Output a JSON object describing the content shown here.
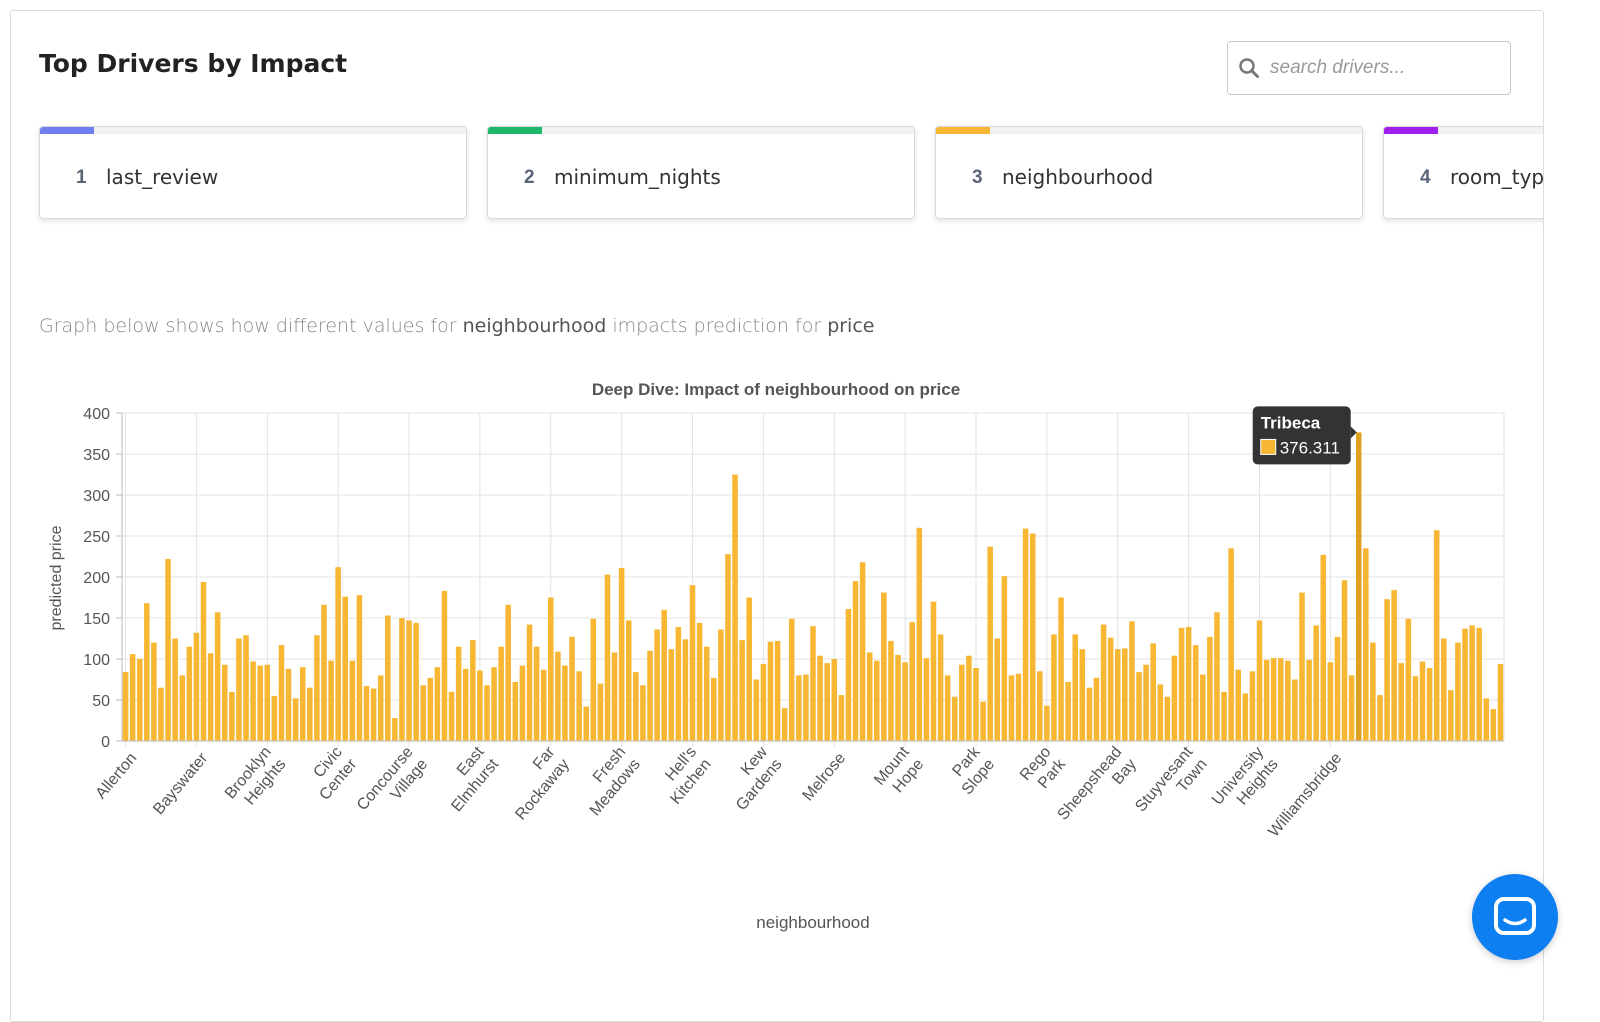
{
  "header": {
    "title": "Top Drivers by Impact",
    "search_placeholder": "search drivers..."
  },
  "drivers": [
    {
      "rank": "1",
      "name": "last_review",
      "color": "#6f7ff0"
    },
    {
      "rank": "2",
      "name": "minimum_nights",
      "color": "#1db66b"
    },
    {
      "rank": "3",
      "name": "neighbourhood",
      "color": "#f7b733"
    },
    {
      "rank": "4",
      "name": "room_type",
      "color": "#a020f0"
    }
  ],
  "description": {
    "prefix": "Graph below shows how different values for",
    "feature": "neighbourhood",
    "middle": "impacts prediction for",
    "target": "price"
  },
  "chart_data": {
    "type": "bar",
    "title": "Deep Dive: Impact of neighbourhood on price",
    "xlabel": "neighbourhood",
    "ylabel": "predicted price",
    "ylim": [
      0,
      400
    ],
    "yticks": [
      0,
      50,
      100,
      150,
      200,
      250,
      300,
      350,
      400
    ],
    "bar_color": "#f7b733",
    "grid": true,
    "tick_labels": [
      {
        "index": 0,
        "lines": [
          "Allerton"
        ]
      },
      {
        "index": 10,
        "lines": [
          "Bayswater"
        ]
      },
      {
        "index": 20,
        "lines": [
          "Brooklyn",
          "Heights"
        ]
      },
      {
        "index": 30,
        "lines": [
          "Civic",
          "Center"
        ]
      },
      {
        "index": 40,
        "lines": [
          "Concourse",
          "Village"
        ]
      },
      {
        "index": 50,
        "lines": [
          "East",
          "Elmhurst"
        ]
      },
      {
        "index": 60,
        "lines": [
          "Far",
          "Rockaway"
        ]
      },
      {
        "index": 70,
        "lines": [
          "Fresh",
          "Meadows"
        ]
      },
      {
        "index": 80,
        "lines": [
          "Hell's",
          "Kitchen"
        ]
      },
      {
        "index": 90,
        "lines": [
          "Kew",
          "Gardens"
        ]
      },
      {
        "index": 100,
        "lines": [
          "Melrose"
        ]
      },
      {
        "index": 110,
        "lines": [
          "Mount",
          "Hope"
        ]
      },
      {
        "index": 120,
        "lines": [
          "Park",
          "Slope"
        ]
      },
      {
        "index": 130,
        "lines": [
          "Rego",
          "Park"
        ]
      },
      {
        "index": 140,
        "lines": [
          "Sheepshead",
          "Bay"
        ]
      },
      {
        "index": 150,
        "lines": [
          "Stuyvesant",
          "Town"
        ]
      },
      {
        "index": 160,
        "lines": [
          "University",
          "Heights"
        ]
      },
      {
        "index": 170,
        "lines": [
          "Williamsbridge"
        ]
      }
    ],
    "values": [
      84,
      106,
      100,
      168,
      120,
      65,
      222,
      125,
      80,
      115,
      132,
      194,
      107,
      157,
      93,
      60,
      125,
      129,
      97,
      92,
      93,
      55,
      117,
      88,
      52,
      90,
      65,
      129,
      166,
      98,
      212,
      176,
      98,
      178,
      67,
      64,
      80,
      153,
      28,
      150,
      147,
      144,
      68,
      77,
      90,
      183,
      60,
      115,
      88,
      123,
      86,
      68,
      90,
      115,
      166,
      72,
      92,
      142,
      115,
      87,
      175,
      109,
      92,
      127,
      85,
      42,
      149,
      70,
      203,
      108,
      211,
      147,
      84,
      68,
      110,
      136,
      160,
      112,
      139,
      124,
      190,
      144,
      115,
      77,
      136,
      228,
      325,
      123,
      175,
      75,
      94,
      121,
      122,
      40,
      149,
      80,
      81,
      140,
      104,
      95,
      100,
      56,
      161,
      195,
      218,
      108,
      98,
      181,
      122,
      105,
      96,
      145,
      260,
      101,
      170,
      130,
      80,
      54,
      93,
      104,
      89,
      48,
      237,
      125,
      201,
      80,
      82,
      259,
      253,
      85,
      43,
      130,
      175,
      72,
      130,
      112,
      65,
      77,
      142,
      126,
      112,
      113,
      146,
      84,
      93,
      119,
      69,
      54,
      104,
      138,
      139,
      117,
      81,
      127,
      157,
      60,
      235,
      87,
      58,
      85,
      147,
      99,
      101,
      101,
      98,
      75,
      181,
      99,
      141,
      227,
      96,
      127,
      196,
      80,
      376.311,
      235,
      120,
      56,
      173,
      184,
      95,
      149,
      79,
      97,
      89,
      257,
      125,
      62,
      120,
      137,
      141,
      138,
      52,
      39,
      94
    ],
    "tooltip": {
      "label": "Tribeca",
      "value": "376.311",
      "index": 174
    }
  }
}
